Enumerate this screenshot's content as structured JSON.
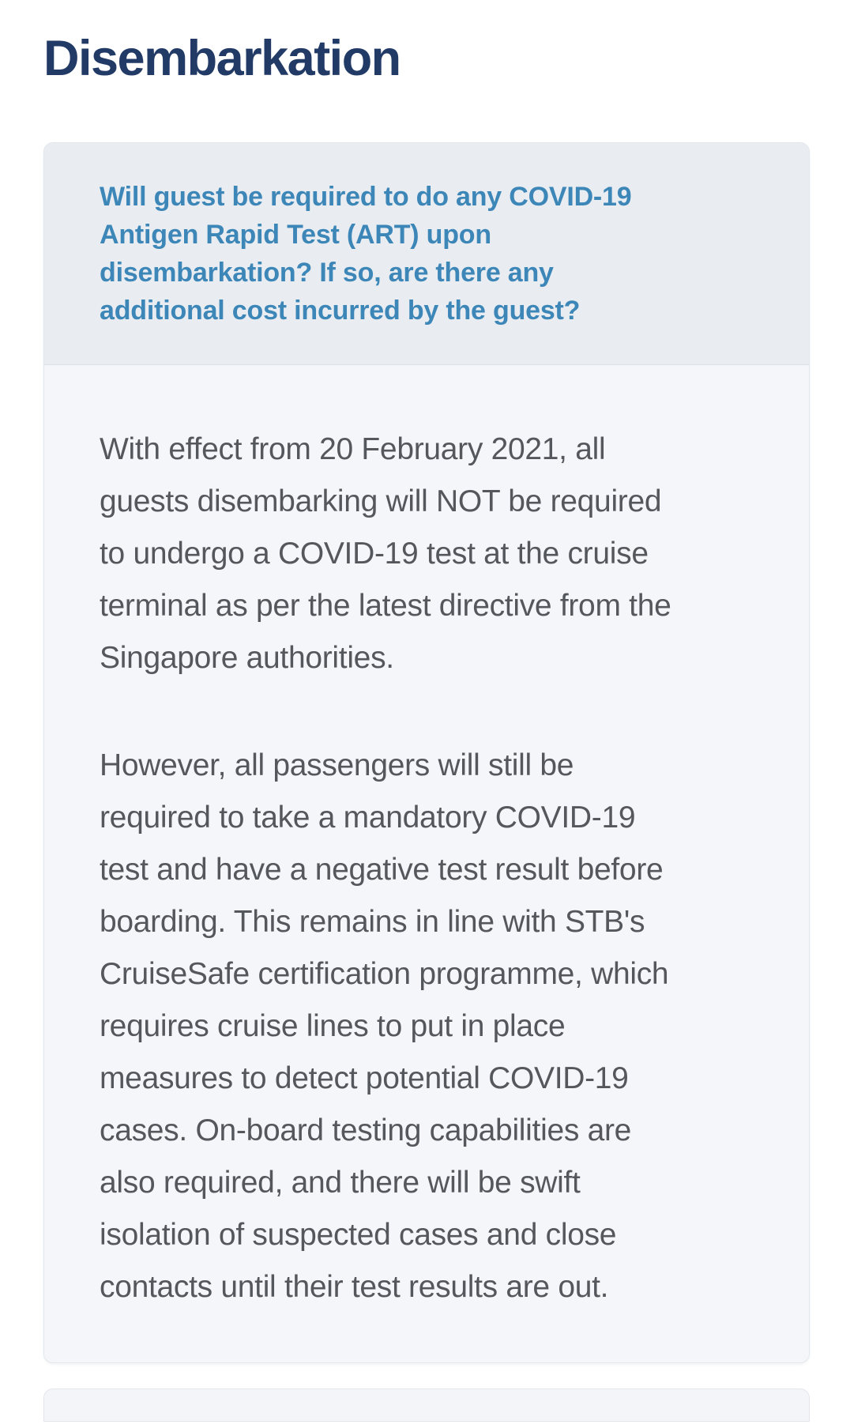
{
  "page": {
    "title": "Disembarkation"
  },
  "faq": {
    "question": "Will guest be required to do any COVID-19\nAntigen Rapid Test (ART) upon\ndisembarkation? If so, are there any\nadditional cost incurred by the guest?",
    "answer_paragraphs": [
      "With effect from 20 February 2021, all\nguests disembarking will NOT be required\nto undergo a COVID-19 test at the cruise\nterminal as per the latest directive from the\nSingapore authorities.",
      "However, all passengers will still be\nrequired to take a mandatory COVID-19\ntest and have a negative test result before\nboarding. This remains in line with STB's\nCruiseSafe certification programme, which\nrequires cruise lines to put in place\nmeasures to detect potential COVID-19\ncases. On-board testing capabilities are\nalso required, and there will be swift\nisolation of suspected cases and close\ncontacts until their test results are out."
    ]
  },
  "colors": {
    "title_text": "#213a66",
    "question_text": "#3d86b8",
    "header_bg": "#e9edf1",
    "body_bg": "#f5f6f9",
    "body_text": "#54575b",
    "card_border": "#e3e7ec",
    "page_bg": "#ffffff"
  }
}
